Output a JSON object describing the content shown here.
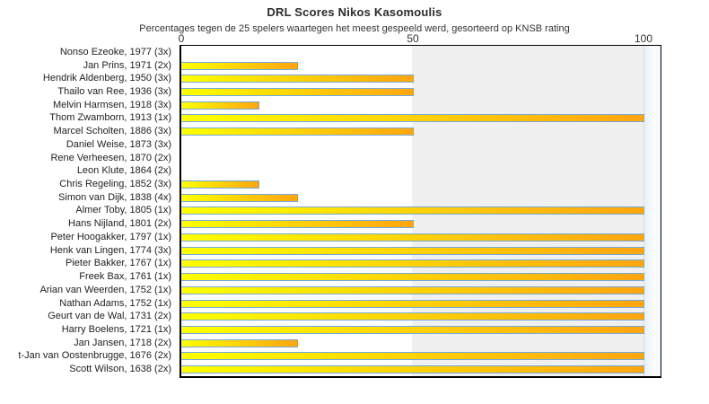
{
  "title": "DRL Scores Nikos Kasomoulis",
  "subtitle": "Percentages tegen de 25 spelers waartegen het meest gespeeld werd, gesorteerd op KNSB rating",
  "chart_data": {
    "type": "bar",
    "orientation": "horizontal",
    "title": "DRL Scores Nikos Kasomoulis",
    "subtitle": "Percentages tegen de 25 spelers waartegen het meest gespeeld werd, gesorteerd op KNSB rating",
    "xlabel": "",
    "ylabel": "",
    "xlim": [
      0,
      100
    ],
    "x_ticks": [
      0,
      50,
      100
    ],
    "x_tick_labels": [
      "0",
      "50",
      "100"
    ],
    "grid": false,
    "legend": false,
    "categories": [
      "Nonso Ezeoke, 1977 (3x)",
      "Jan Prins, 1971 (2x)",
      "Hendrik Aldenberg, 1950 (3x)",
      "Thailo van Ree, 1936 (3x)",
      "Melvin Harmsen, 1918 (3x)",
      "Thom Zwamborn, 1913 (1x)",
      "Marcel Scholten, 1886 (3x)",
      "Daniel Weise, 1873 (3x)",
      "Rene Verheesen, 1870 (2x)",
      "Leon Klute, 1864 (2x)",
      "Chris Regeling, 1852 (3x)",
      "Simon van Dijk, 1838 (4x)",
      "Almer Toby, 1805 (1x)",
      "Hans Nijland, 1801 (2x)",
      "Peter Hoogakker, 1797 (1x)",
      "Henk van Lingen, 1774 (3x)",
      "Pieter Bakker, 1767 (1x)",
      "Freek Bax, 1761 (1x)",
      "Arian van Weerden, 1752 (1x)",
      "Nathan Adams, 1752 (1x)",
      "Geurt van de Wal, 1731 (2x)",
      "Harry Boelens, 1721 (1x)",
      "Jan Jansen, 1718 (2x)",
      "t-Jan van Oostenbrugge, 1676 (2x)",
      "Scott Wilson, 1638 (2x)"
    ],
    "values": [
      0,
      25,
      50,
      50,
      16.7,
      100,
      50,
      0,
      0,
      0,
      16.7,
      25,
      100,
      50,
      100,
      100,
      100,
      100,
      100,
      100,
      100,
      100,
      25,
      100,
      100
    ],
    "colors": {
      "bar_gradient_start": "#ffff00",
      "bar_gradient_end": "#ffa510",
      "bar_border": "#74aad8",
      "band_50_100_background": "#f0f0f0",
      "overflow_band_background": "#e8f1f8",
      "plot_border": "#000000",
      "text": "#222222"
    }
  }
}
